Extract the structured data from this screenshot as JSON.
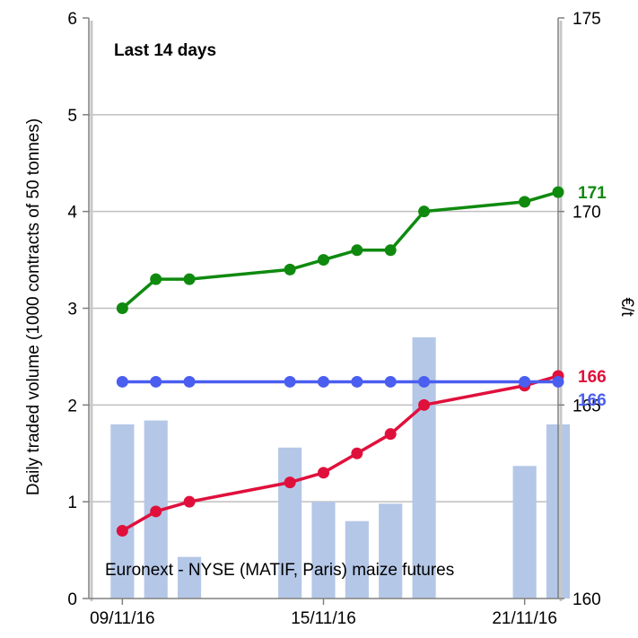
{
  "chart_data": {
    "type": "bar+line",
    "annotation_title": "Last 14 days",
    "annotation_source": "Euronext - NYSE (MATIF, Paris) maize futures",
    "ylabel_left": "Daily traded volume (1000 contracts of 50 tonnes)",
    "ylabel_right": "€/t",
    "ylim_left": [
      0,
      6
    ],
    "ylim_right": [
      160,
      175
    ],
    "yticks_left": [
      "0",
      "1",
      "2",
      "3",
      "4",
      "5",
      "6"
    ],
    "yticks_right": [
      "160",
      "165",
      "170",
      "175"
    ],
    "xlim": [
      "2016-11-08",
      "2016-11-22"
    ],
    "xtick_labels": [
      {
        "date": "2016-11-09",
        "label": "09/11/16"
      },
      {
        "date": "2016-11-15",
        "label": "15/11/16"
      },
      {
        "date": "2016-11-21",
        "label": "21/11/16"
      }
    ],
    "grid": "horizontal",
    "dates": [
      "2016-11-09",
      "2016-11-10",
      "2016-11-11",
      "2016-11-14",
      "2016-11-15",
      "2016-11-16",
      "2016-11-17",
      "2016-11-18",
      "2016-11-21",
      "2016-11-22"
    ],
    "volume": {
      "axis": "left",
      "color": "#b4c7e7",
      "points": [
        {
          "date": "2016-11-09",
          "value": 1.8
        },
        {
          "date": "2016-11-10",
          "value": 1.84
        },
        {
          "date": "2016-11-11",
          "value": 0.43
        },
        {
          "date": "2016-11-14",
          "value": 1.56
        },
        {
          "date": "2016-11-15",
          "value": 1.0
        },
        {
          "date": "2016-11-16",
          "value": 0.8
        },
        {
          "date": "2016-11-17",
          "value": 0.98
        },
        {
          "date": "2016-11-18",
          "value": 2.7
        },
        {
          "date": "2016-11-21",
          "value": 1.37
        },
        {
          "date": "2016-11-22",
          "value": 1.8
        }
      ]
    },
    "series": [
      {
        "axis": "right",
        "color": "#0f8a0f",
        "end_label": "171",
        "points": [
          {
            "date": "2016-11-09",
            "value": 167.5
          },
          {
            "date": "2016-11-10",
            "value": 168.25
          },
          {
            "date": "2016-11-11",
            "value": 168.25
          },
          {
            "date": "2016-11-14",
            "value": 168.5
          },
          {
            "date": "2016-11-15",
            "value": 168.75
          },
          {
            "date": "2016-11-16",
            "value": 169.0
          },
          {
            "date": "2016-11-17",
            "value": 169.0
          },
          {
            "date": "2016-11-18",
            "value": 170.0
          },
          {
            "date": "2016-11-21",
            "value": 170.25
          },
          {
            "date": "2016-11-22",
            "value": 170.5
          }
        ]
      },
      {
        "axis": "right",
        "color": "#e0103c",
        "end_label": "166",
        "points": [
          {
            "date": "2016-11-09",
            "value": 161.75
          },
          {
            "date": "2016-11-10",
            "value": 162.25
          },
          {
            "date": "2016-11-11",
            "value": 162.5
          },
          {
            "date": "2016-11-14",
            "value": 163.0
          },
          {
            "date": "2016-11-15",
            "value": 163.25
          },
          {
            "date": "2016-11-16",
            "value": 163.75
          },
          {
            "date": "2016-11-17",
            "value": 164.25
          },
          {
            "date": "2016-11-18",
            "value": 165.0
          },
          {
            "date": "2016-11-21",
            "value": 165.5
          },
          {
            "date": "2016-11-22",
            "value": 165.75
          }
        ]
      },
      {
        "axis": "right",
        "color": "#4a5ef0",
        "end_label": "166",
        "points": [
          {
            "date": "2016-11-09",
            "value": 165.6
          },
          {
            "date": "2016-11-10",
            "value": 165.6
          },
          {
            "date": "2016-11-11",
            "value": 165.6
          },
          {
            "date": "2016-11-14",
            "value": 165.6
          },
          {
            "date": "2016-11-15",
            "value": 165.6
          },
          {
            "date": "2016-11-16",
            "value": 165.6
          },
          {
            "date": "2016-11-17",
            "value": 165.6
          },
          {
            "date": "2016-11-18",
            "value": 165.6
          },
          {
            "date": "2016-11-21",
            "value": 165.6
          },
          {
            "date": "2016-11-22",
            "value": 165.6
          }
        ]
      }
    ]
  }
}
